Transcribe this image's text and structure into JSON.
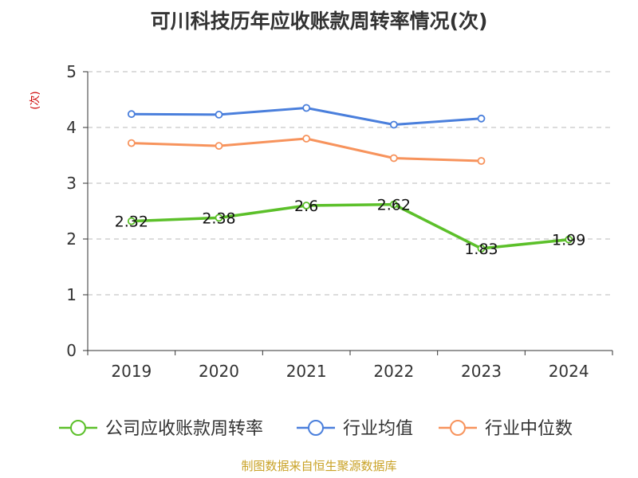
{
  "chart_data": {
    "type": "line",
    "title": "可川科技历年应收账款周转率情况(次)",
    "ylabel": "(次)",
    "ylabel_color": "#cc0000",
    "ylim": [
      0,
      5
    ],
    "yticks": [
      "0",
      "1",
      "2",
      "3",
      "4",
      "5"
    ],
    "categories": [
      "2019",
      "2020",
      "2021",
      "2022",
      "2023",
      "2024"
    ],
    "grid": true,
    "legend_position": "bottom",
    "series": [
      {
        "name": "公司应收账款周转率",
        "color": "#5cc02a",
        "values": [
          2.32,
          2.38,
          2.6,
          2.62,
          1.83,
          1.99
        ],
        "data_labels": [
          "2.32",
          "2.38",
          "2.6",
          "2.62",
          "1.83",
          "1.99"
        ]
      },
      {
        "name": "行业均值",
        "color": "#4a7fdc",
        "values": [
          4.24,
          4.23,
          4.35,
          4.05,
          4.16,
          null
        ]
      },
      {
        "name": "行业中位数",
        "color": "#f7935c",
        "values": [
          3.72,
          3.67,
          3.8,
          3.45,
          3.4,
          null
        ]
      }
    ]
  },
  "source": {
    "text": "制图数据来自恒生聚源数据库",
    "color": "#c9a227"
  }
}
